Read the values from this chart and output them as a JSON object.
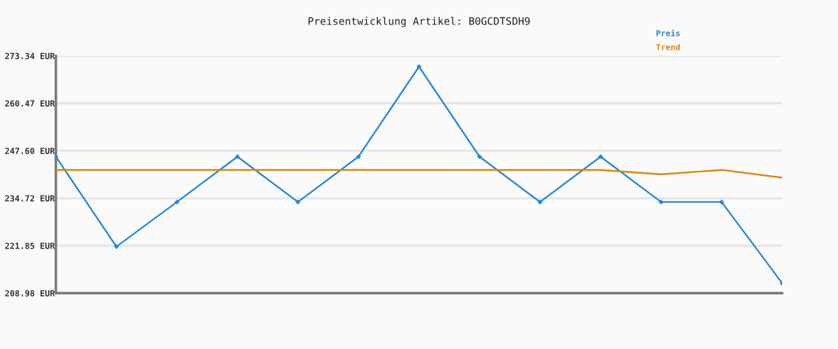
{
  "chart_data": {
    "type": "line",
    "title": "Preisentwicklung Artikel: B0GCDTSDH9",
    "categories": [
      null,
      null,
      null,
      null,
      null,
      null,
      null,
      null,
      null,
      null,
      null,
      null,
      null
    ],
    "series": [
      {
        "name": "Preis",
        "color": "#2288d8",
        "values": [
          246.0,
          221.6,
          233.7,
          246.0,
          233.7,
          246.0,
          270.4,
          246.0,
          233.7,
          246.0,
          233.7,
          233.7,
          211.7
        ]
      },
      {
        "name": "Trend",
        "color": "#e0820f",
        "marker": "none",
        "values": [
          242.4,
          242.4,
          242.4,
          242.4,
          242.4,
          242.4,
          242.4,
          242.4,
          242.4,
          242.4,
          241.2,
          242.4,
          240.3
        ]
      }
    ],
    "ylim": [
      208.98,
      273.34
    ],
    "yticks": [
      {
        "value": 208.98,
        "label": "208.98 EUR"
      },
      {
        "value": 221.85,
        "label": "221.85 EUR"
      },
      {
        "value": 234.72,
        "label": "234.72 EUR"
      },
      {
        "value": 247.6,
        "label": "247.60 EUR"
      },
      {
        "value": 260.47,
        "label": "260.47 EUR"
      },
      {
        "value": 273.34,
        "label": "273.34 EUR"
      }
    ],
    "grid": "y",
    "legend": "top right",
    "marker": "diamond",
    "line_style": "solid"
  }
}
